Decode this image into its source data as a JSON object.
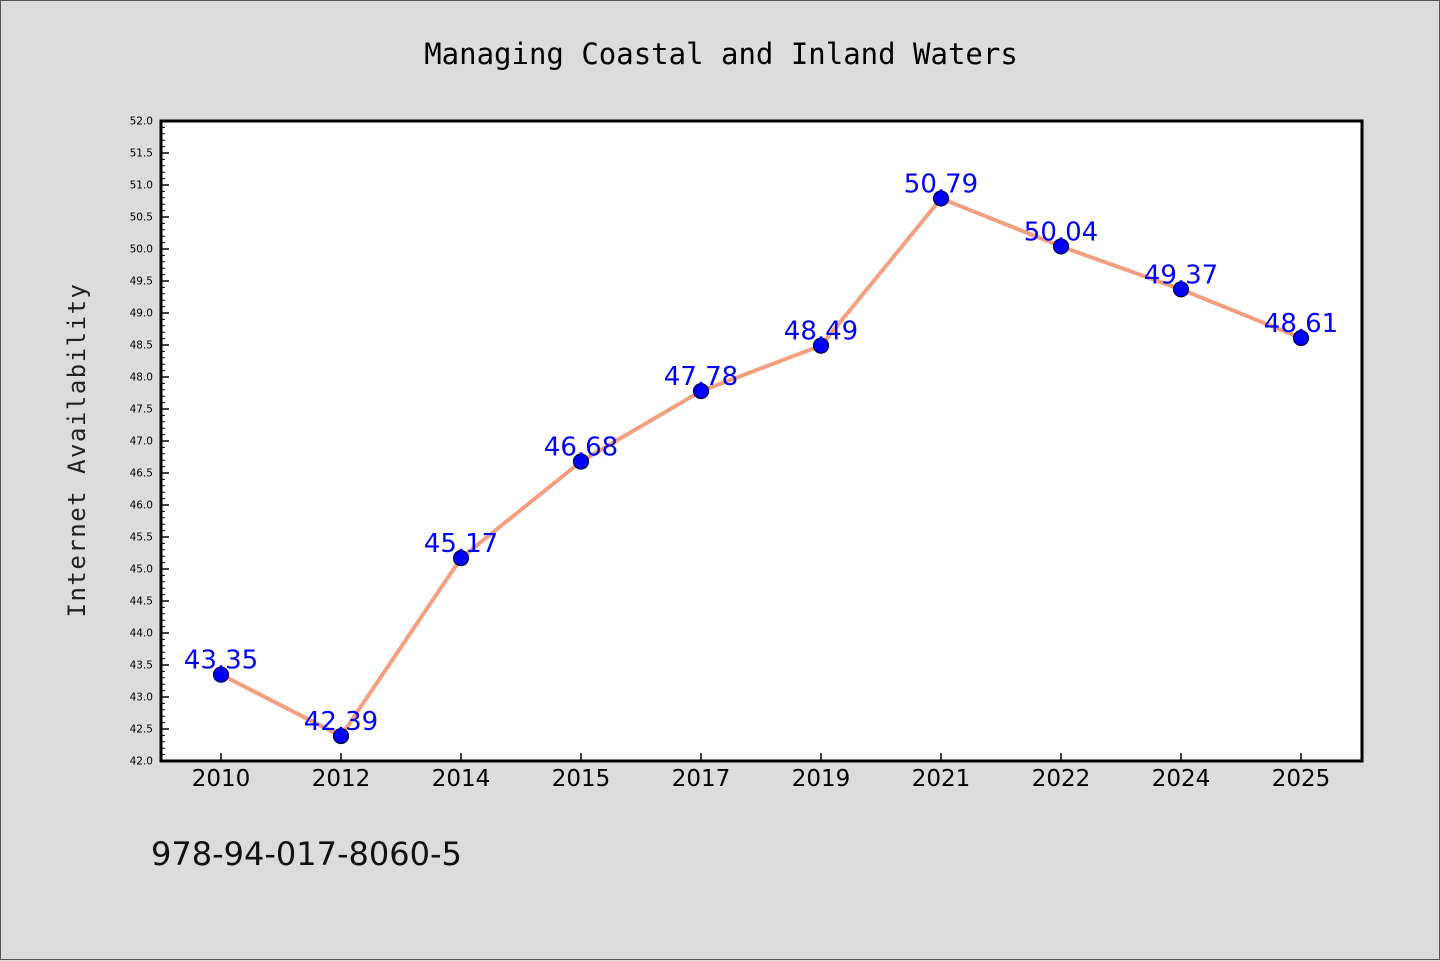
{
  "chart_data": {
    "type": "line",
    "title": "Managing Coastal and Inland Waters",
    "xlabel": "",
    "ylabel": "Internet Availability",
    "categories": [
      "2010",
      "2012",
      "2014",
      "2015",
      "2017",
      "2019",
      "2021",
      "2022",
      "2024",
      "2025"
    ],
    "series": [
      {
        "values": [
          43.35,
          42.39,
          45.17,
          46.68,
          47.78,
          48.49,
          50.79,
          50.04,
          49.37,
          48.61
        ],
        "data_labels": [
          "43.35",
          "42.39",
          "45.17",
          "46.68",
          "47.78",
          "48.49",
          "50.79",
          "50.04",
          "49.37",
          "48.61"
        ]
      }
    ],
    "ylim": [
      42.0,
      52.0
    ],
    "yticks": [
      "42.0",
      "42.5",
      "43.0",
      "43.5",
      "44.0",
      "44.5",
      "45.0",
      "45.5",
      "46.0",
      "46.5",
      "47.0",
      "47.5",
      "48.0",
      "48.5",
      "49.0",
      "49.5",
      "50.0",
      "50.5",
      "51.0",
      "51.5",
      "52.0"
    ],
    "grid": false,
    "legend": "none",
    "colors": {
      "line": "#f4a07f",
      "marker": "#0000ff",
      "marker_edge": "#000033",
      "data_label": "#0000ff",
      "figure_background": "#dcdcdc",
      "plot_background": "#ffffff"
    }
  },
  "footer": {
    "isbn": "978-94-017-8060-5"
  }
}
